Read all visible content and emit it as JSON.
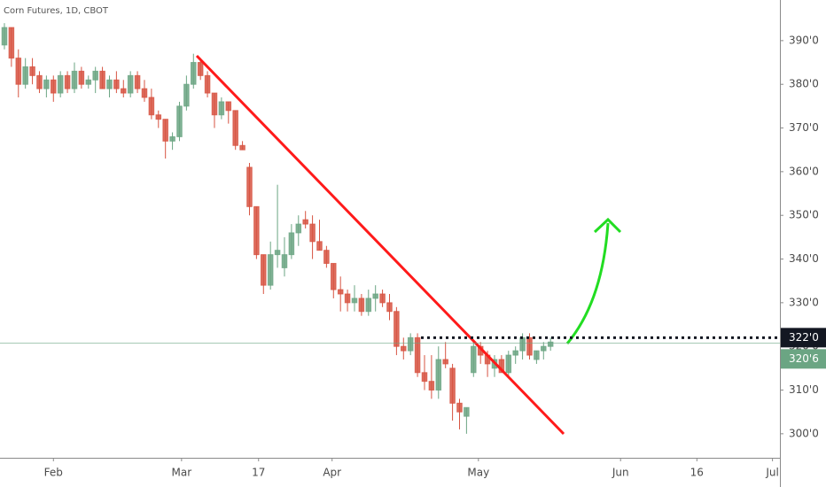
{
  "chart_data": {
    "type": "candlestick",
    "title": "Corn Futures, 1D, CBOT",
    "x": [
      0,
      1,
      2,
      3,
      4,
      5,
      6,
      7,
      8,
      9,
      10,
      11,
      12,
      13,
      14,
      15,
      16,
      17,
      18,
      19,
      20,
      21,
      22,
      23,
      24,
      25,
      26,
      27,
      28,
      29,
      30,
      31,
      32,
      33,
      34,
      35,
      36,
      37,
      38,
      39,
      40,
      41,
      42,
      43,
      44,
      45,
      46,
      47,
      48,
      49,
      50,
      51,
      52,
      53,
      54,
      55,
      56,
      57,
      58,
      59,
      60,
      61,
      62,
      63,
      64,
      65,
      66,
      67,
      68,
      69,
      70,
      71,
      72,
      73,
      74,
      75,
      76,
      77,
      78
    ],
    "open": [
      389,
      393,
      386,
      380,
      384,
      382,
      379,
      381,
      378,
      382,
      379,
      383,
      380,
      381,
      383,
      379,
      381,
      379,
      378,
      382,
      379,
      377,
      373,
      372,
      367,
      368,
      375,
      380,
      385,
      382,
      378,
      373,
      376,
      374,
      366,
      361,
      352,
      341,
      334,
      341,
      338,
      341,
      346,
      349,
      348,
      344,
      342,
      339,
      333,
      332,
      330,
      331,
      328,
      331,
      332,
      330,
      328,
      320,
      319,
      322,
      314,
      312,
      310,
      317,
      315,
      307,
      304,
      314,
      320,
      318,
      315,
      317,
      314,
      318,
      319,
      322,
      317,
      319,
      320
    ],
    "high": [
      394,
      393,
      388,
      386,
      386,
      383,
      382,
      382,
      383,
      383,
      385,
      384,
      382,
      384,
      384,
      382,
      383,
      381,
      383,
      383,
      381,
      379,
      374,
      372,
      369,
      376,
      382,
      387,
      386,
      383,
      378,
      377,
      376,
      374,
      367,
      362,
      352,
      341,
      344,
      357,
      345,
      348,
      350,
      351,
      350,
      349,
      343,
      339,
      336,
      333,
      334,
      332,
      333,
      334,
      333,
      332,
      329,
      322,
      323,
      323,
      318,
      318,
      320,
      321,
      316,
      308,
      306,
      321,
      321,
      319,
      318,
      318,
      319,
      320,
      323,
      323,
      319,
      321,
      322
    ],
    "low": [
      388,
      384,
      377,
      379,
      380,
      378,
      377,
      376,
      377,
      378,
      378,
      379,
      379,
      378,
      379,
      377,
      378,
      377,
      377,
      378,
      376,
      372,
      370,
      363,
      365,
      367,
      374,
      379,
      381,
      377,
      370,
      372,
      371,
      365,
      365,
      350,
      340,
      332,
      333,
      338,
      336,
      340,
      343,
      347,
      340,
      342,
      338,
      331,
      328,
      328,
      328,
      327,
      327,
      328,
      329,
      326,
      318,
      317,
      318,
      313,
      310,
      308,
      308,
      315,
      303,
      301,
      300,
      313,
      316,
      313,
      313,
      314,
      313,
      316,
      317,
      317,
      316,
      317,
      319
    ],
    "close": [
      393,
      386,
      380,
      384,
      382,
      379,
      381,
      378,
      382,
      379,
      383,
      380,
      381,
      383,
      379,
      381,
      379,
      378,
      382,
      379,
      377,
      373,
      372,
      367,
      368,
      375,
      380,
      385,
      382,
      378,
      373,
      376,
      374,
      366,
      365,
      352,
      341,
      334,
      341,
      342,
      341,
      346,
      348,
      348,
      344,
      342,
      339,
      333,
      332,
      330,
      331,
      328,
      331,
      332,
      330,
      328,
      320,
      319,
      322,
      314,
      312,
      310,
      317,
      316,
      307,
      305,
      306,
      320,
      318,
      316,
      317,
      314,
      318,
      319,
      322,
      318,
      319,
      320,
      321
    ],
    "up_color": "#6ba583",
    "down_color": "#d75442",
    "xlim": [
      -0.63,
      110.76
    ],
    "xticks": [
      {
        "value": 7,
        "label": "Feb"
      },
      {
        "value": 25.3,
        "label": "Mar"
      },
      {
        "value": 36.3,
        "label": "17"
      },
      {
        "value": 46.8,
        "label": "Apr"
      },
      {
        "value": 67.7,
        "label": "May"
      },
      {
        "value": 88,
        "label": "Jun"
      },
      {
        "value": 98.9,
        "label": "16"
      },
      {
        "value": 109.7,
        "label": "Jul"
      }
    ],
    "ylim": [
      294.5,
      399.3
    ],
    "yticks": [
      {
        "value": 300,
        "label": "300'0"
      },
      {
        "value": 310,
        "label": "310'0"
      },
      {
        "value": 320,
        "label": "320'0"
      },
      {
        "value": 330,
        "label": "330'0"
      },
      {
        "value": 340,
        "label": "340'0"
      },
      {
        "value": 350,
        "label": "350'0"
      },
      {
        "value": 360,
        "label": "360'0"
      },
      {
        "value": 370,
        "label": "370'0"
      },
      {
        "value": 380,
        "label": "380'0"
      },
      {
        "value": 390,
        "label": "390'0"
      }
    ],
    "price_lines": [
      {
        "value": 322,
        "label": "322'0",
        "color": "#131722"
      },
      {
        "value": 320.75,
        "label": "320'6",
        "color": "#6ba583"
      }
    ]
  }
}
